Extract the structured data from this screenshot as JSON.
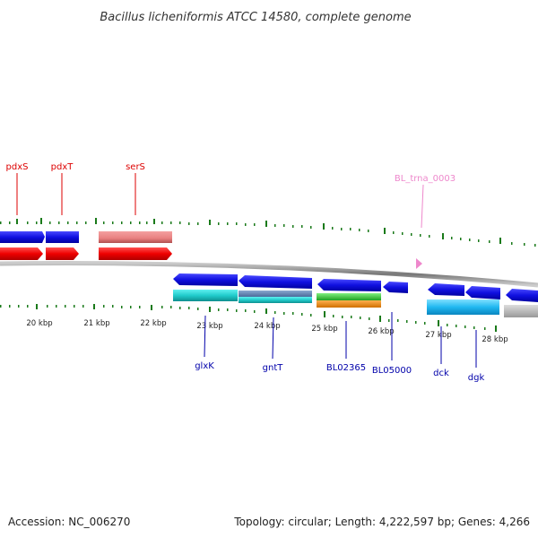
{
  "title": "Bacillus licheniformis ATCC 14580, complete genome",
  "footer": {
    "accession": "Accession: NC_006270",
    "summary": "Topology: circular; Length: 4,222,597 bp; Genes: 4,266"
  },
  "colors": {
    "label_red": "#dd0000",
    "label_blue": "#0000aa",
    "label_pink": "#ee88cc",
    "tick_green": "#1a7a1a",
    "backbone": "#777777"
  },
  "ticks": [
    "20 kbp",
    "21 kbp",
    "22 kbp",
    "23 kbp",
    "24 kbp",
    "25 kbp",
    "26 kbp",
    "27 kbp",
    "28 kbp"
  ],
  "labels": {
    "pdxS": "pdxS",
    "pdxT": "pdxT",
    "serS": "serS",
    "trna": "BL_trna_0003",
    "glxK": "glxK",
    "gntT": "gntT",
    "bl02365": "BL02365",
    "bl05000": "BL05000",
    "dck": "dck",
    "dgk": "dgk"
  }
}
